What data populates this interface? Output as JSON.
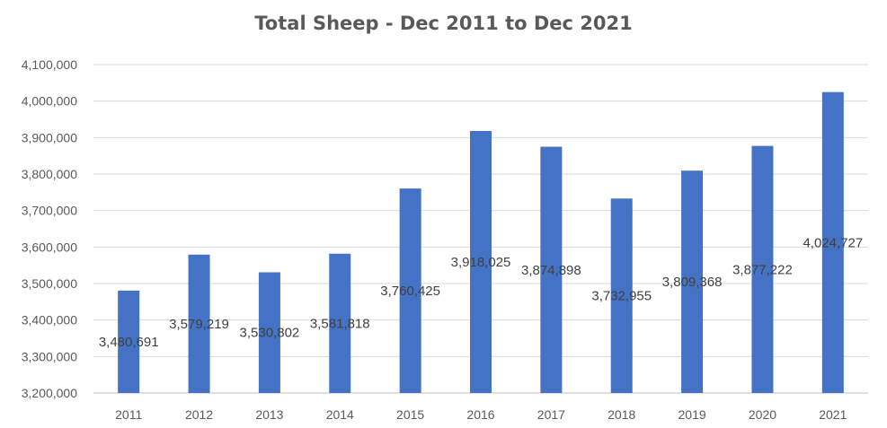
{
  "chart_data": {
    "type": "bar",
    "title": "Total Sheep - Dec 2011 to Dec 2021",
    "xlabel": "",
    "ylabel": "",
    "categories": [
      "2011",
      "2012",
      "2013",
      "2014",
      "2015",
      "2016",
      "2017",
      "2018",
      "2019",
      "2020",
      "2021"
    ],
    "values": [
      3480691,
      3579219,
      3530802,
      3581818,
      3760425,
      3918025,
      3874898,
      3732955,
      3809368,
      3877222,
      4024727
    ],
    "data_labels": [
      "3,480,691",
      "3,579,219",
      "3,530,802",
      "3,581,818",
      "3,760,425",
      "3,918,025",
      "3,874,898",
      "3,732,955",
      "3,809,368",
      "3,877,222",
      "4,024,727"
    ],
    "ylim": [
      3200000,
      4100000
    ],
    "yticks": [
      3200000,
      3300000,
      3400000,
      3500000,
      3600000,
      3700000,
      3800000,
      3900000,
      4000000,
      4100000
    ],
    "ytick_labels": [
      "3,200,000",
      "3,300,000",
      "3,400,000",
      "3,500,000",
      "3,600,000",
      "3,700,000",
      "3,800,000",
      "3,900,000",
      "4,000,000",
      "4,100,000"
    ],
    "grid": true,
    "legend": "none",
    "bar_color": "#4472c4"
  }
}
